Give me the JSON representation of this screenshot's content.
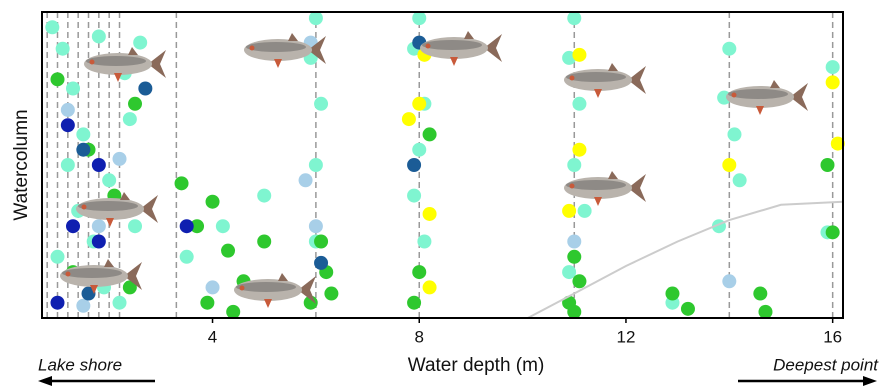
{
  "chart_data": {
    "type": "scatter",
    "xlabel": "Water depth (m)",
    "ylabel": "Watercolumn",
    "left_note": "Lake shore",
    "right_note": "Deepest point",
    "xlim": [
      0.7,
      16.2
    ],
    "xticks": [
      4,
      8,
      12,
      16
    ],
    "ylim": [
      0,
      1
    ],
    "stations": [
      0.8,
      1.0,
      1.2,
      1.4,
      1.6,
      1.8,
      2.0,
      2.2,
      3.3,
      6.0,
      8.0,
      11.0,
      14.0,
      16.0
    ],
    "bottom": {
      "color": "#cccccc",
      "x": [
        10.1,
        11,
        12,
        13,
        14,
        15,
        16.2
      ],
      "values": [
        0,
        0.08,
        0.17,
        0.25,
        0.32,
        0.37,
        0.38
      ]
    },
    "series": [
      {
        "color": "#7ff5d0",
        "x": [
          0.9,
          1.1,
          1.3,
          1.5,
          1.8,
          2.0,
          2.3,
          2.5,
          1.0,
          1.4,
          1.9,
          2.4,
          1.2,
          1.7,
          2.2,
          2.6,
          3.5,
          4.2,
          4.8,
          5.0,
          6.0,
          5.9,
          6.1,
          6.0,
          6.0,
          8.0,
          7.9,
          8.1,
          8.0,
          7.9,
          8.1,
          11.0,
          10.9,
          11.1,
          11.0,
          11.2,
          10.9,
          14.0,
          13.9,
          14.1,
          14.2,
          13.8,
          16.0,
          15.9,
          12.9
        ],
        "values": [
          0.95,
          0.88,
          0.75,
          0.6,
          0.92,
          0.45,
          0.8,
          0.3,
          0.2,
          0.35,
          0.1,
          0.65,
          0.5,
          0.25,
          0.05,
          0.9,
          0.2,
          0.3,
          0.1,
          0.4,
          0.98,
          0.85,
          0.7,
          0.5,
          0.25,
          0.98,
          0.88,
          0.7,
          0.55,
          0.4,
          0.25,
          0.98,
          0.85,
          0.7,
          0.5,
          0.35,
          0.15,
          0.88,
          0.72,
          0.6,
          0.45,
          0.3,
          0.82,
          0.28,
          0.05
        ]
      },
      {
        "color": "#2ec82e",
        "x": [
          1.0,
          1.6,
          2.1,
          2.5,
          1.3,
          2.4,
          3.4,
          3.7,
          4.0,
          4.3,
          4.6,
          5.0,
          3.9,
          4.4,
          6.1,
          6.2,
          5.9,
          6.3,
          7.9,
          8.0,
          8.2,
          11.0,
          11.1,
          10.9,
          11.0,
          12.9,
          13.2,
          14.6,
          14.7,
          15.9,
          16.0
        ],
        "values": [
          0.78,
          0.55,
          0.4,
          0.7,
          0.15,
          0.1,
          0.44,
          0.3,
          0.38,
          0.22,
          0.12,
          0.25,
          0.05,
          0.02,
          0.25,
          0.15,
          0.05,
          0.08,
          0.05,
          0.15,
          0.6,
          0.2,
          0.12,
          0.05,
          0.02,
          0.08,
          0.03,
          0.08,
          0.02,
          0.5,
          0.28
        ]
      },
      {
        "color": "#a8cfe8",
        "x": [
          1.2,
          1.8,
          2.2,
          5.9,
          5.8,
          6.0,
          4.0,
          11.0,
          14.0,
          1.5
        ],
        "values": [
          0.68,
          0.3,
          0.52,
          0.9,
          0.45,
          0.3,
          0.1,
          0.25,
          0.12,
          0.04
        ]
      },
      {
        "color": "#1b5c96",
        "x": [
          2.7,
          1.5,
          8.0,
          7.9,
          6.1,
          1.6
        ],
        "values": [
          0.75,
          0.55,
          0.9,
          0.5,
          0.18,
          0.08
        ]
      },
      {
        "color": "#0f1fb0",
        "x": [
          1.2,
          1.8,
          1.3,
          1.8,
          2.0,
          3.5,
          1.0
        ],
        "values": [
          0.63,
          0.5,
          0.3,
          0.25,
          0.15,
          0.3,
          0.05
        ]
      },
      {
        "color": "#ffff00",
        "x": [
          8.1,
          8.0,
          7.8,
          8.2,
          8.2,
          11.1,
          11.1,
          10.9,
          14.0,
          16.0,
          16.1
        ],
        "values": [
          0.86,
          0.7,
          0.65,
          0.34,
          0.1,
          0.86,
          0.55,
          0.35,
          0.5,
          0.77,
          0.57
        ]
      }
    ]
  }
}
